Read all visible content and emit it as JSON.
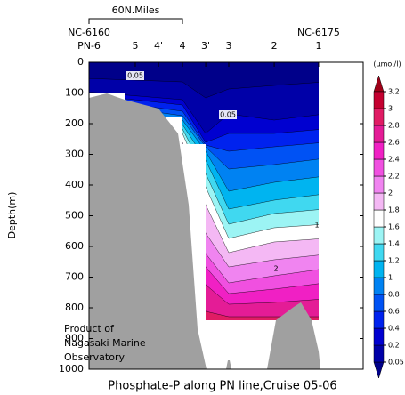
{
  "chart_data": {
    "type": "contour",
    "title": "Phosphate-P along PN line,Cruise 05-06",
    "ylabel": "Depth(m)",
    "ylim": [
      0,
      1000
    ],
    "yticks": [
      0,
      100,
      200,
      300,
      400,
      500,
      600,
      700,
      800,
      900,
      1000
    ],
    "xlim": [
      0,
      176
    ],
    "x": [
      0,
      29.7,
      44.6,
      60,
      74.9,
      89.7,
      118.9,
      147.4
    ],
    "station_labels": [
      "PN-6",
      "5",
      "4'",
      "4",
      "3'",
      "3",
      "2",
      "1"
    ],
    "end_labels": [
      "NC-6160",
      "NC-6175"
    ],
    "scale_bar": {
      "value": 60,
      "label": "60N.Miles"
    },
    "annotation": [
      "Product of",
      "Nagasaki Marine",
      "Observatory"
    ],
    "contour_labels": [
      0.05,
      0.05,
      1,
      2
    ],
    "colorbar": {
      "label": "(μmol/l)",
      "levels": [
        0.05,
        0.2,
        0.4,
        0.6,
        0.8,
        1,
        1.2,
        1.4,
        1.6,
        1.8,
        2,
        2.2,
        2.4,
        2.6,
        2.8,
        3,
        3.2
      ],
      "colors": [
        "#00008a",
        "#0000a8",
        "#0000d0",
        "#0022ee",
        "#0052f4",
        "#0082f2",
        "#00b4f0",
        "#40d8f0",
        "#9cf4f4",
        "#ffffff",
        "#f4b8f4",
        "#f084f0",
        "#f050e0",
        "#f020c4",
        "#e41c96",
        "#e01c64",
        "#c40030",
        "#a00018"
      ]
    }
  }
}
